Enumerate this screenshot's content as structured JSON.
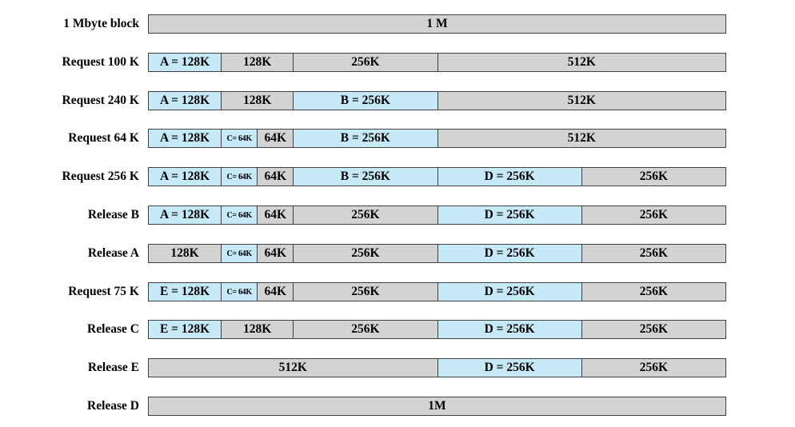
{
  "colors": {
    "free": "#d3d3d3",
    "allocated": "#c6e9f8",
    "border": "#404040"
  },
  "total_kb": 1024,
  "rows": [
    {
      "label": "1 Mbyte block",
      "blocks": [
        {
          "size": 1024,
          "text": "1 M",
          "state": "free"
        }
      ]
    },
    {
      "label": "Request 100 K",
      "blocks": [
        {
          "size": 128,
          "text": "A = 128K",
          "state": "allocated"
        },
        {
          "size": 128,
          "text": "128K",
          "state": "free"
        },
        {
          "size": 256,
          "text": "256K",
          "state": "free"
        },
        {
          "size": 512,
          "text": "512K",
          "state": "free"
        }
      ]
    },
    {
      "label": "Request 240 K",
      "blocks": [
        {
          "size": 128,
          "text": "A = 128K",
          "state": "allocated"
        },
        {
          "size": 128,
          "text": "128K",
          "state": "free"
        },
        {
          "size": 256,
          "text": "B = 256K",
          "state": "allocated"
        },
        {
          "size": 512,
          "text": "512K",
          "state": "free"
        }
      ]
    },
    {
      "label": "Request 64 K",
      "blocks": [
        {
          "size": 128,
          "text": "A = 128K",
          "state": "allocated"
        },
        {
          "size": 64,
          "text": "C= 64K",
          "state": "allocated",
          "small": true
        },
        {
          "size": 64,
          "text": "64K",
          "state": "free"
        },
        {
          "size": 256,
          "text": "B = 256K",
          "state": "allocated"
        },
        {
          "size": 512,
          "text": "512K",
          "state": "free"
        }
      ]
    },
    {
      "label": "Request 256 K",
      "blocks": [
        {
          "size": 128,
          "text": "A = 128K",
          "state": "allocated"
        },
        {
          "size": 64,
          "text": "C= 64K",
          "state": "allocated",
          "small": true
        },
        {
          "size": 64,
          "text": "64K",
          "state": "free"
        },
        {
          "size": 256,
          "text": "B = 256K",
          "state": "allocated"
        },
        {
          "size": 256,
          "text": "D = 256K",
          "state": "allocated"
        },
        {
          "size": 256,
          "text": "256K",
          "state": "free"
        }
      ]
    },
    {
      "label": "Release B",
      "blocks": [
        {
          "size": 128,
          "text": "A = 128K",
          "state": "allocated"
        },
        {
          "size": 64,
          "text": "C= 64K",
          "state": "allocated",
          "small": true
        },
        {
          "size": 64,
          "text": "64K",
          "state": "free"
        },
        {
          "size": 256,
          "text": "256K",
          "state": "free"
        },
        {
          "size": 256,
          "text": "D = 256K",
          "state": "allocated"
        },
        {
          "size": 256,
          "text": "256K",
          "state": "free"
        }
      ]
    },
    {
      "label": "Release A",
      "blocks": [
        {
          "size": 128,
          "text": "128K",
          "state": "free"
        },
        {
          "size": 64,
          "text": "C= 64K",
          "state": "allocated",
          "small": true
        },
        {
          "size": 64,
          "text": "64K",
          "state": "free"
        },
        {
          "size": 256,
          "text": "256K",
          "state": "free"
        },
        {
          "size": 256,
          "text": "D = 256K",
          "state": "allocated"
        },
        {
          "size": 256,
          "text": "256K",
          "state": "free"
        }
      ]
    },
    {
      "label": "Request 75 K",
      "blocks": [
        {
          "size": 128,
          "text": "E = 128K",
          "state": "allocated"
        },
        {
          "size": 64,
          "text": "C= 64K",
          "state": "allocated",
          "small": true
        },
        {
          "size": 64,
          "text": "64K",
          "state": "free"
        },
        {
          "size": 256,
          "text": "256K",
          "state": "free"
        },
        {
          "size": 256,
          "text": "D = 256K",
          "state": "allocated"
        },
        {
          "size": 256,
          "text": "256K",
          "state": "free"
        }
      ]
    },
    {
      "label": "Release C",
      "blocks": [
        {
          "size": 128,
          "text": "E = 128K",
          "state": "allocated"
        },
        {
          "size": 128,
          "text": "128K",
          "state": "free"
        },
        {
          "size": 256,
          "text": "256K",
          "state": "free"
        },
        {
          "size": 256,
          "text": "D = 256K",
          "state": "allocated"
        },
        {
          "size": 256,
          "text": "256K",
          "state": "free"
        }
      ]
    },
    {
      "label": "Release E",
      "blocks": [
        {
          "size": 512,
          "text": "512K",
          "state": "free"
        },
        {
          "size": 256,
          "text": "D = 256K",
          "state": "allocated"
        },
        {
          "size": 256,
          "text": "256K",
          "state": "free"
        }
      ]
    },
    {
      "label": "Release D",
      "blocks": [
        {
          "size": 1024,
          "text": "1M",
          "state": "free"
        }
      ]
    }
  ]
}
